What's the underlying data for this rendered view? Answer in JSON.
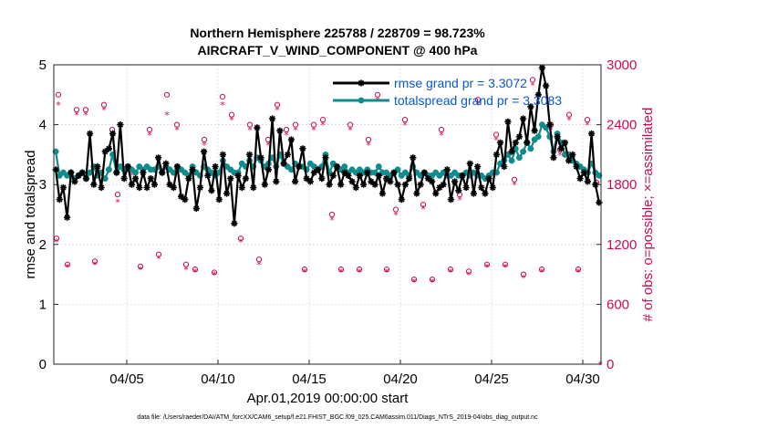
{
  "chart_data": {
    "type": "line",
    "title_line1": "Northern Hemisphere 225788 / 228709 = 98.723%",
    "title_line2": "AIRCRAFT_V_WIND_COMPONENT @ 400 hPa",
    "xlabel": "Apr.01,2019 00:00:00 start",
    "ylabel_left": "rmse and totalspread",
    "ylabel_right": "# of obs: o=possible; ×=assimilated",
    "footer": "data file: /Users/raeder/DAI/ATM_forcXX/CAM6_setup/f.e21.FHIST_BGC.f09_025.CAM6assim.011/Diags_NTrS_2019-04/obs_diag_output.nc",
    "x_range_days": [
      1,
      31
    ],
    "ylim_left": [
      0,
      5
    ],
    "ylim_right": [
      0,
      3000
    ],
    "yticks_left": [
      "0",
      "1",
      "2",
      "3",
      "4",
      "5"
    ],
    "yticks_right": [
      "0",
      "600",
      "1200",
      "1800",
      "2400",
      "3000"
    ],
    "xtick_days": [
      5,
      10,
      15,
      20,
      25,
      30
    ],
    "xtick_labels": [
      "04/05",
      "04/10",
      "04/15",
      "04/20",
      "04/25",
      "04/30"
    ],
    "colors": {
      "rmse": "#000000",
      "spread": "#118c8c",
      "obs": "#cc0a55",
      "legend_text": "#0a58d0"
    },
    "series": [
      {
        "name": "rmse grand pr = 3.3072",
        "values": [
          3.25,
          2.75,
          2.95,
          2.45,
          3.2,
          3.05,
          3.15,
          3.2,
          3.1,
          3.85,
          3.0,
          3.3,
          2.95,
          3.55,
          3.6,
          3.85,
          3.2,
          4.0,
          3.1,
          3.3,
          3.0,
          3.1,
          2.95,
          3.2,
          2.95,
          3.1,
          3.0,
          3.45,
          3.2,
          3.35,
          3.0,
          2.95,
          3.3,
          2.8,
          2.75,
          3.1,
          3.25,
          2.6,
          2.95,
          3.55,
          3.15,
          2.9,
          3.3,
          2.75,
          3.5,
          2.85,
          3.1,
          2.35,
          3.15,
          2.95,
          3.1,
          3.5,
          2.95,
          3.95,
          3.45,
          3.0,
          3.25,
          4.1,
          3.05,
          3.9,
          3.35,
          3.5,
          3.75,
          3.05,
          3.3,
          3.6,
          3.1,
          3.05,
          3.2,
          3.25,
          3.1,
          3.45,
          3.0,
          3.15,
          3.3,
          3.0,
          3.2,
          3.15,
          3.05,
          2.95,
          3.15,
          3.0,
          3.2,
          3.05,
          3.0,
          3.15,
          2.85,
          3.1,
          3.05,
          3.2,
          3.0,
          2.75,
          3.0,
          3.1,
          3.45,
          2.85,
          3.0,
          3.2,
          3.1,
          3.05,
          2.85,
          2.95,
          3.0,
          3.25,
          2.75,
          3.05,
          2.9,
          3.15,
          2.95,
          3.35,
          2.85,
          3.3,
          2.95,
          2.85,
          3.1,
          2.95,
          3.5,
          3.7,
          3.3,
          4.05,
          3.55,
          3.7,
          3.8,
          4.1,
          3.7,
          4.3,
          3.9,
          4.5,
          4.95,
          4.65,
          4.0,
          3.45,
          3.8,
          3.6,
          3.7,
          3.4,
          3.5,
          3.3,
          3.1,
          3.2,
          3.05,
          3.85,
          3.0,
          2.7
        ]
      },
      {
        "name": "totalspread grand pr = 3.3083",
        "values": [
          3.55,
          3.15,
          3.2,
          3.15,
          3.2,
          3.1,
          3.15,
          3.2,
          3.1,
          3.2,
          3.3,
          3.15,
          3.2,
          3.1,
          3.25,
          3.5,
          3.2,
          3.3,
          3.25,
          3.3,
          3.25,
          3.2,
          3.3,
          3.25,
          3.3,
          3.25,
          3.25,
          3.3,
          3.2,
          3.3,
          3.25,
          3.2,
          3.3,
          3.25,
          3.2,
          3.15,
          3.3,
          3.2,
          3.15,
          3.3,
          3.25,
          3.2,
          3.15,
          3.2,
          3.4,
          3.3,
          3.25,
          3.2,
          3.2,
          3.35,
          3.3,
          3.4,
          3.3,
          3.45,
          3.4,
          3.3,
          3.35,
          3.45,
          3.3,
          3.5,
          3.35,
          3.3,
          3.25,
          3.35,
          3.3,
          3.3,
          3.25,
          3.35,
          3.3,
          3.25,
          3.3,
          3.5,
          3.2,
          3.35,
          3.3,
          3.25,
          3.3,
          3.2,
          3.25,
          3.2,
          3.25,
          3.2,
          3.25,
          3.2,
          3.2,
          3.3,
          3.2,
          3.2,
          3.15,
          3.2,
          3.25,
          3.15,
          3.2,
          3.15,
          3.3,
          3.2,
          3.15,
          3.2,
          3.15,
          3.15,
          3.2,
          3.15,
          3.2,
          3.15,
          3.15,
          3.2,
          3.15,
          3.15,
          3.2,
          3.15,
          3.2,
          3.15,
          3.15,
          3.1,
          3.15,
          3.2,
          3.2,
          3.35,
          3.4,
          3.5,
          3.4,
          3.6,
          3.45,
          3.55,
          3.7,
          3.6,
          3.75,
          3.8,
          4.0,
          3.95,
          3.8,
          3.55,
          3.85,
          3.7,
          3.5,
          3.5,
          3.4,
          3.35,
          3.3,
          3.25,
          3.2,
          3.35,
          3.2,
          3.15
        ]
      }
    ],
    "obs_possible": [
      [
        1.15,
        1260
      ],
      [
        1.25,
        2700
      ],
      [
        1.75,
        1000
      ],
      [
        2.25,
        2550
      ],
      [
        2.75,
        2550
      ],
      [
        3.25,
        1030
      ],
      [
        3.75,
        2600
      ],
      [
        4.2,
        2350
      ],
      [
        4.5,
        1700
      ],
      [
        5.25,
        1950
      ],
      [
        5.75,
        980
      ],
      [
        6.25,
        2350
      ],
      [
        6.75,
        1100
      ],
      [
        7.2,
        2700
      ],
      [
        7.75,
        2400
      ],
      [
        8.25,
        1000
      ],
      [
        8.75,
        950
      ],
      [
        9.25,
        2250
      ],
      [
        9.8,
        920
      ],
      [
        10.25,
        2680
      ],
      [
        10.75,
        2500
      ],
      [
        11.25,
        1260
      ],
      [
        11.75,
        2400
      ],
      [
        12.25,
        1050
      ],
      [
        12.75,
        2250
      ],
      [
        13.25,
        2600
      ],
      [
        13.75,
        2350
      ],
      [
        14.25,
        2400
      ],
      [
        14.75,
        950
      ],
      [
        15.25,
        2400
      ],
      [
        15.75,
        2450
      ],
      [
        16.25,
        1500
      ],
      [
        16.75,
        950
      ],
      [
        17.25,
        2400
      ],
      [
        17.75,
        950
      ],
      [
        18.25,
        2250
      ],
      [
        18.75,
        2700
      ],
      [
        19.25,
        950
      ],
      [
        19.75,
        1550
      ],
      [
        20.25,
        2450
      ],
      [
        20.75,
        850
      ],
      [
        21.25,
        1600
      ],
      [
        21.75,
        850
      ],
      [
        22.25,
        2350
      ],
      [
        22.75,
        950
      ],
      [
        23.25,
        1700
      ],
      [
        23.75,
        930
      ],
      [
        24.25,
        2650
      ],
      [
        24.75,
        1000
      ],
      [
        25.25,
        2300
      ],
      [
        25.75,
        1000
      ],
      [
        26.25,
        1850
      ],
      [
        26.75,
        900
      ],
      [
        27.25,
        2850
      ],
      [
        27.75,
        950
      ],
      [
        28.25,
        2400
      ],
      [
        28.75,
        2150
      ],
      [
        29.25,
        2500
      ],
      [
        29.75,
        950
      ],
      [
        30.25,
        2450
      ],
      [
        30.75,
        1820
      ]
    ],
    "obs_assimilated": [
      [
        1.15,
        1230
      ],
      [
        1.25,
        2600
      ],
      [
        1.75,
        980
      ],
      [
        2.25,
        2500
      ],
      [
        2.75,
        2500
      ],
      [
        3.25,
        1000
      ],
      [
        3.75,
        2550
      ],
      [
        4.2,
        2300
      ],
      [
        4.5,
        1630
      ],
      [
        5.25,
        1900
      ],
      [
        5.75,
        950
      ],
      [
        6.25,
        2300
      ],
      [
        6.75,
        1060
      ],
      [
        7.2,
        2500
      ],
      [
        7.75,
        2350
      ],
      [
        8.25,
        950
      ],
      [
        8.75,
        930
      ],
      [
        9.25,
        2200
      ],
      [
        9.8,
        900
      ],
      [
        10.25,
        2600
      ],
      [
        10.75,
        2450
      ],
      [
        11.25,
        1230
      ],
      [
        11.75,
        2350
      ],
      [
        12.25,
        1000
      ],
      [
        12.75,
        2200
      ],
      [
        13.25,
        2550
      ],
      [
        13.75,
        2300
      ],
      [
        14.25,
        2350
      ],
      [
        14.75,
        930
      ],
      [
        15.25,
        2350
      ],
      [
        15.75,
        2400
      ],
      [
        16.25,
        1450
      ],
      [
        16.75,
        930
      ],
      [
        17.25,
        2350
      ],
      [
        17.75,
        930
      ],
      [
        18.25,
        2200
      ],
      [
        18.75,
        2650
      ],
      [
        19.25,
        930
      ],
      [
        19.75,
        1500
      ],
      [
        20.25,
        2400
      ],
      [
        20.75,
        830
      ],
      [
        21.25,
        1560
      ],
      [
        21.75,
        830
      ],
      [
        22.25,
        2300
      ],
      [
        22.75,
        930
      ],
      [
        23.25,
        1650
      ],
      [
        23.75,
        900
      ],
      [
        24.25,
        2600
      ],
      [
        24.75,
        980
      ],
      [
        25.25,
        2250
      ],
      [
        25.75,
        980
      ],
      [
        26.25,
        1800
      ],
      [
        26.75,
        870
      ],
      [
        27.25,
        2800
      ],
      [
        27.75,
        930
      ],
      [
        28.25,
        2350
      ],
      [
        28.75,
        2100
      ],
      [
        29.25,
        2450
      ],
      [
        29.75,
        930
      ],
      [
        30.25,
        2400
      ],
      [
        30.75,
        1780
      ],
      [
        30.95,
        0
      ]
    ]
  }
}
